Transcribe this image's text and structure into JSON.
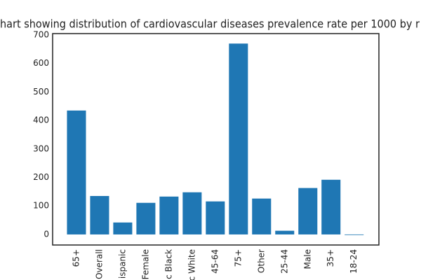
{
  "chart_data": {
    "type": "bar",
    "title": "hart showing distribution of cardiovascular diseases prevalence rate per 1000 by r",
    "categories": [
      "65+",
      "Overall",
      "ispanic",
      "Female",
      "c Black",
      "c White",
      "45-64",
      "75+",
      "Other",
      "25-44",
      "Male",
      "35+",
      "18-24"
    ],
    "values": [
      435,
      135,
      42,
      111,
      133,
      148,
      116,
      670,
      126,
      13,
      163,
      192,
      -2
    ],
    "color": "#1f77b4",
    "ylim": [
      -37,
      705
    ],
    "yticks": [
      0,
      100,
      200,
      300,
      400,
      500,
      600,
      700
    ],
    "grid": false
  }
}
